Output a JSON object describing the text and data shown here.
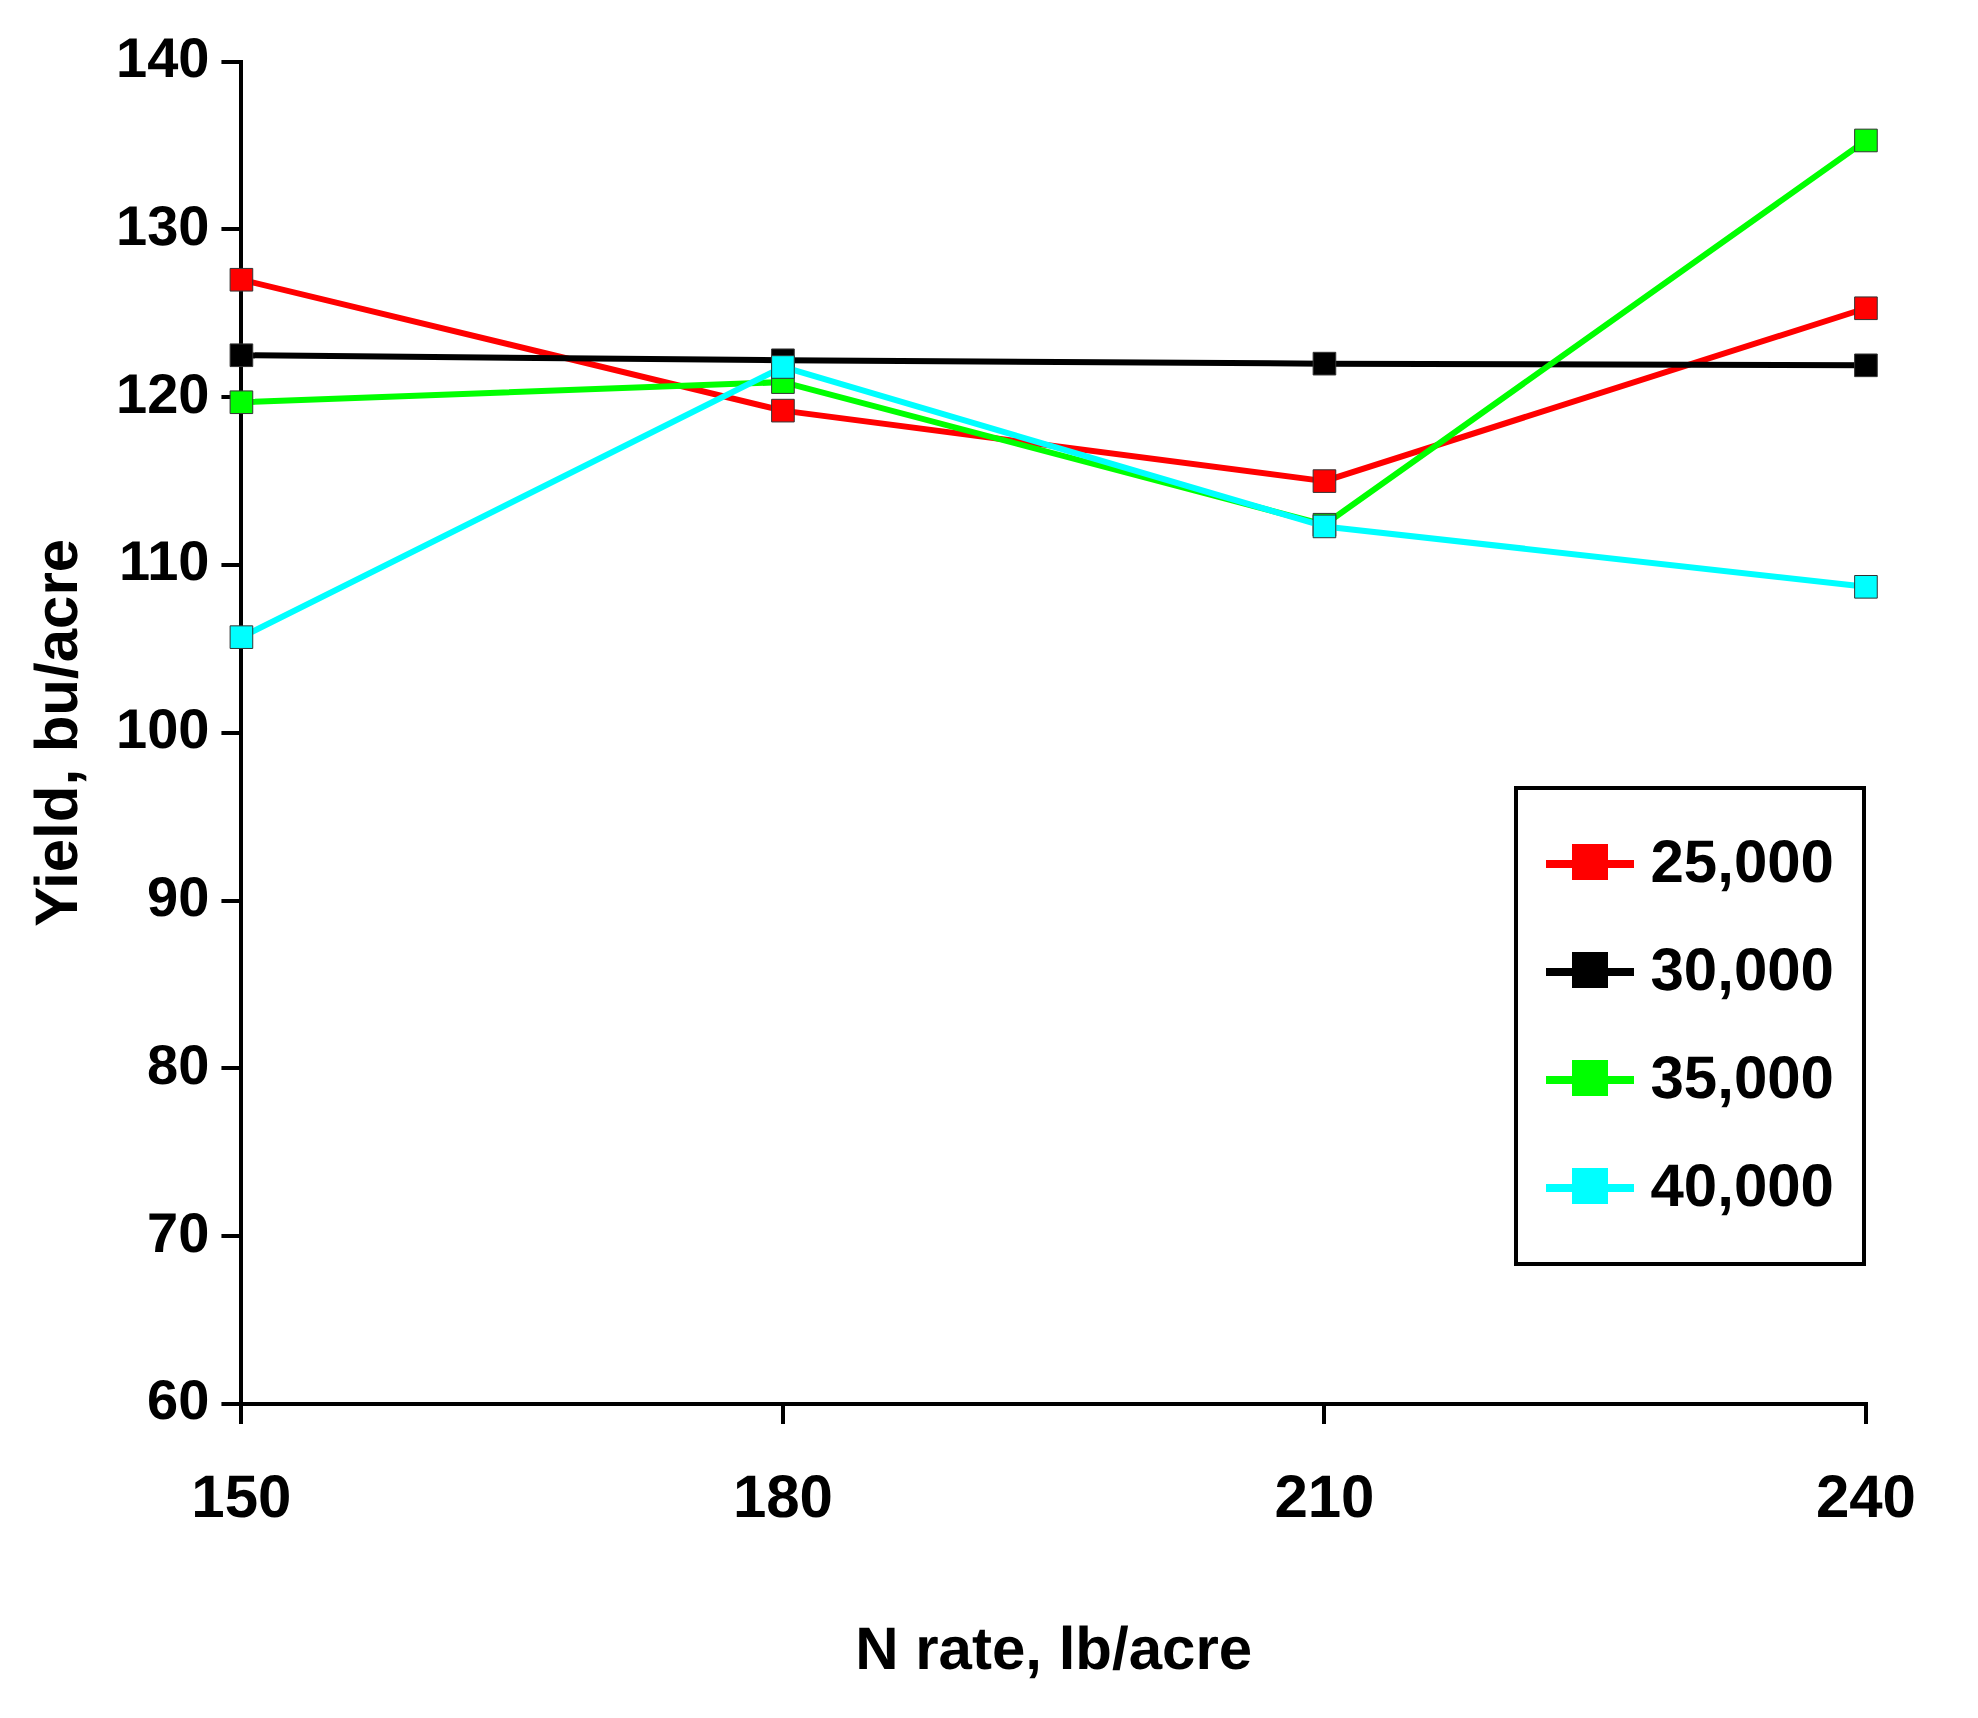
{
  "chart_data": {
    "type": "line",
    "xlabel": "N rate, lb/acre",
    "ylabel": "Yield, bu/acre",
    "x": [
      150,
      180,
      210,
      240
    ],
    "xlim": [
      150,
      240
    ],
    "xticks": [
      150,
      180,
      210,
      240
    ],
    "ylim": [
      60,
      140
    ],
    "yticks": [
      60,
      70,
      80,
      90,
      100,
      110,
      120,
      130,
      140
    ],
    "grid": false,
    "legend": "bottom right",
    "marker": "square",
    "line_style": "solid",
    "series": [
      {
        "name": "25,000",
        "color": "#ff0000",
        "values": [
          127,
          119.2,
          115,
          125.3
        ]
      },
      {
        "name": "30,000",
        "color": "#000000",
        "values": [
          122.5,
          122.2,
          122,
          121.9
        ]
      },
      {
        "name": "35,000",
        "color": "#00ff00",
        "values": [
          119.7,
          120.9,
          112.4,
          135.3
        ]
      },
      {
        "name": "40,000",
        "color": "#00ffff",
        "values": [
          105.7,
          121.8,
          112.3,
          108.7
        ]
      }
    ]
  }
}
